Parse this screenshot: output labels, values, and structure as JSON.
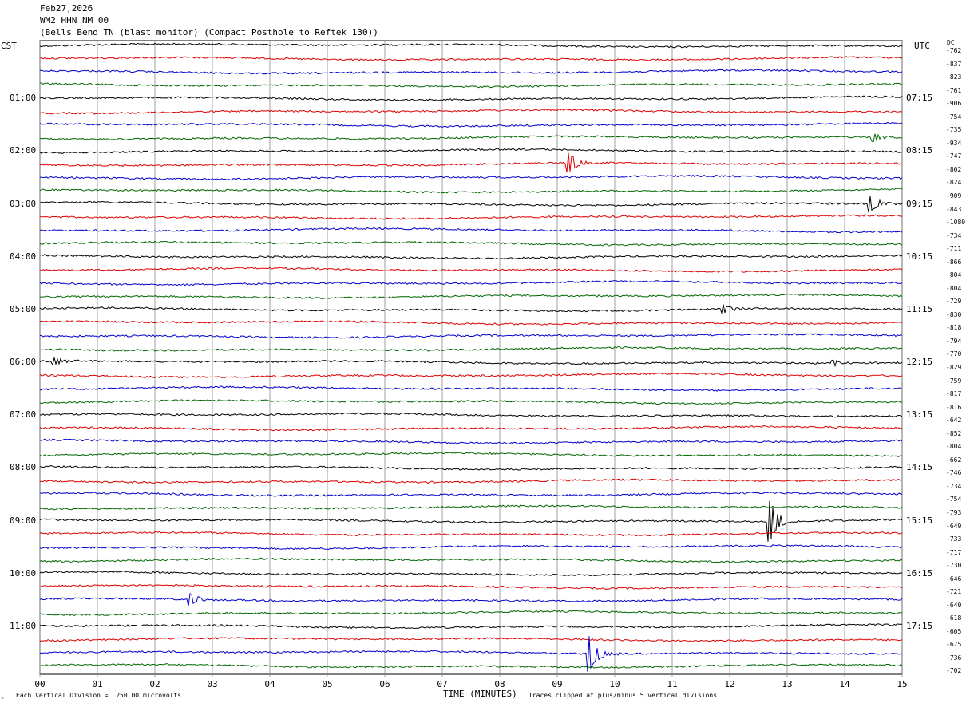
{
  "header": {
    "date": "Feb27,2026",
    "station": "WM2 HHN NM 00",
    "site": "(Bells Bend TN (blast monitor) (Compact Posthole to Reftek 130))"
  },
  "left_tz": "CST",
  "right_tz": "UTC",
  "dc_header": "DC",
  "colors": [
    "#000000",
    "#dd0000",
    "#0000cc",
    "#006600"
  ],
  "footer": {
    "scale": "Each Vertical Division =  250.00 microvolts",
    "clip": "Traces clipped at plus/minus 5 vertical divisions",
    "corner": "‸"
  },
  "chart_data": {
    "type": "line",
    "xlabel": "TIME (MINUTES)",
    "xlim": [
      0,
      15
    ],
    "x_ticks": [
      "00",
      "01",
      "02",
      "03",
      "04",
      "05",
      "06",
      "07",
      "08",
      "09",
      "10",
      "11",
      "12",
      "13",
      "14",
      "15"
    ],
    "left_labels": [
      "",
      "01:00",
      "02:00",
      "03:00",
      "04:00",
      "05:00",
      "06:00",
      "07:00",
      "08:00",
      "09:00",
      "10:00",
      "11:00"
    ],
    "right_labels": [
      "",
      "07:15",
      "08:15",
      "09:15",
      "10:15",
      "11:15",
      "12:15",
      "13:15",
      "14:15",
      "15:15",
      "16:15",
      "17:15"
    ],
    "dc_offsets": [
      "-762",
      "-837",
      "-823",
      "-761",
      "-906",
      "-754",
      "-735",
      "-934",
      "-747",
      "-802",
      "-824",
      "-909",
      "-843",
      "-1080",
      "-734",
      "-711",
      "-866",
      "-804",
      "-804",
      "-729",
      "-830",
      "-818",
      "-794",
      "-770",
      "-829",
      "-759",
      "-817",
      "-816",
      "-642",
      "-852",
      "-804",
      "-662",
      "-746",
      "-734",
      "-754",
      "-793",
      "-649",
      "-733",
      "-717",
      "-730",
      "-646",
      "-721",
      "-640",
      "-618",
      "-605",
      "-675",
      "-736",
      "-702"
    ],
    "events": [
      {
        "trace": 7,
        "minute": 14.5,
        "amp": 6
      },
      {
        "trace": 9,
        "minute": 9.2,
        "amp": 12
      },
      {
        "trace": 12,
        "minute": 14.45,
        "amp": 10
      },
      {
        "trace": 20,
        "minute": 11.9,
        "amp": 5
      },
      {
        "trace": 24,
        "minute": 0.25,
        "amp": 5
      },
      {
        "trace": 24,
        "minute": 13.8,
        "amp": 4
      },
      {
        "trace": 36,
        "minute": 12.7,
        "amp": 25
      },
      {
        "trace": 42,
        "minute": 2.6,
        "amp": 8
      },
      {
        "trace": 46,
        "minute": 9.55,
        "amp": 22
      }
    ]
  }
}
